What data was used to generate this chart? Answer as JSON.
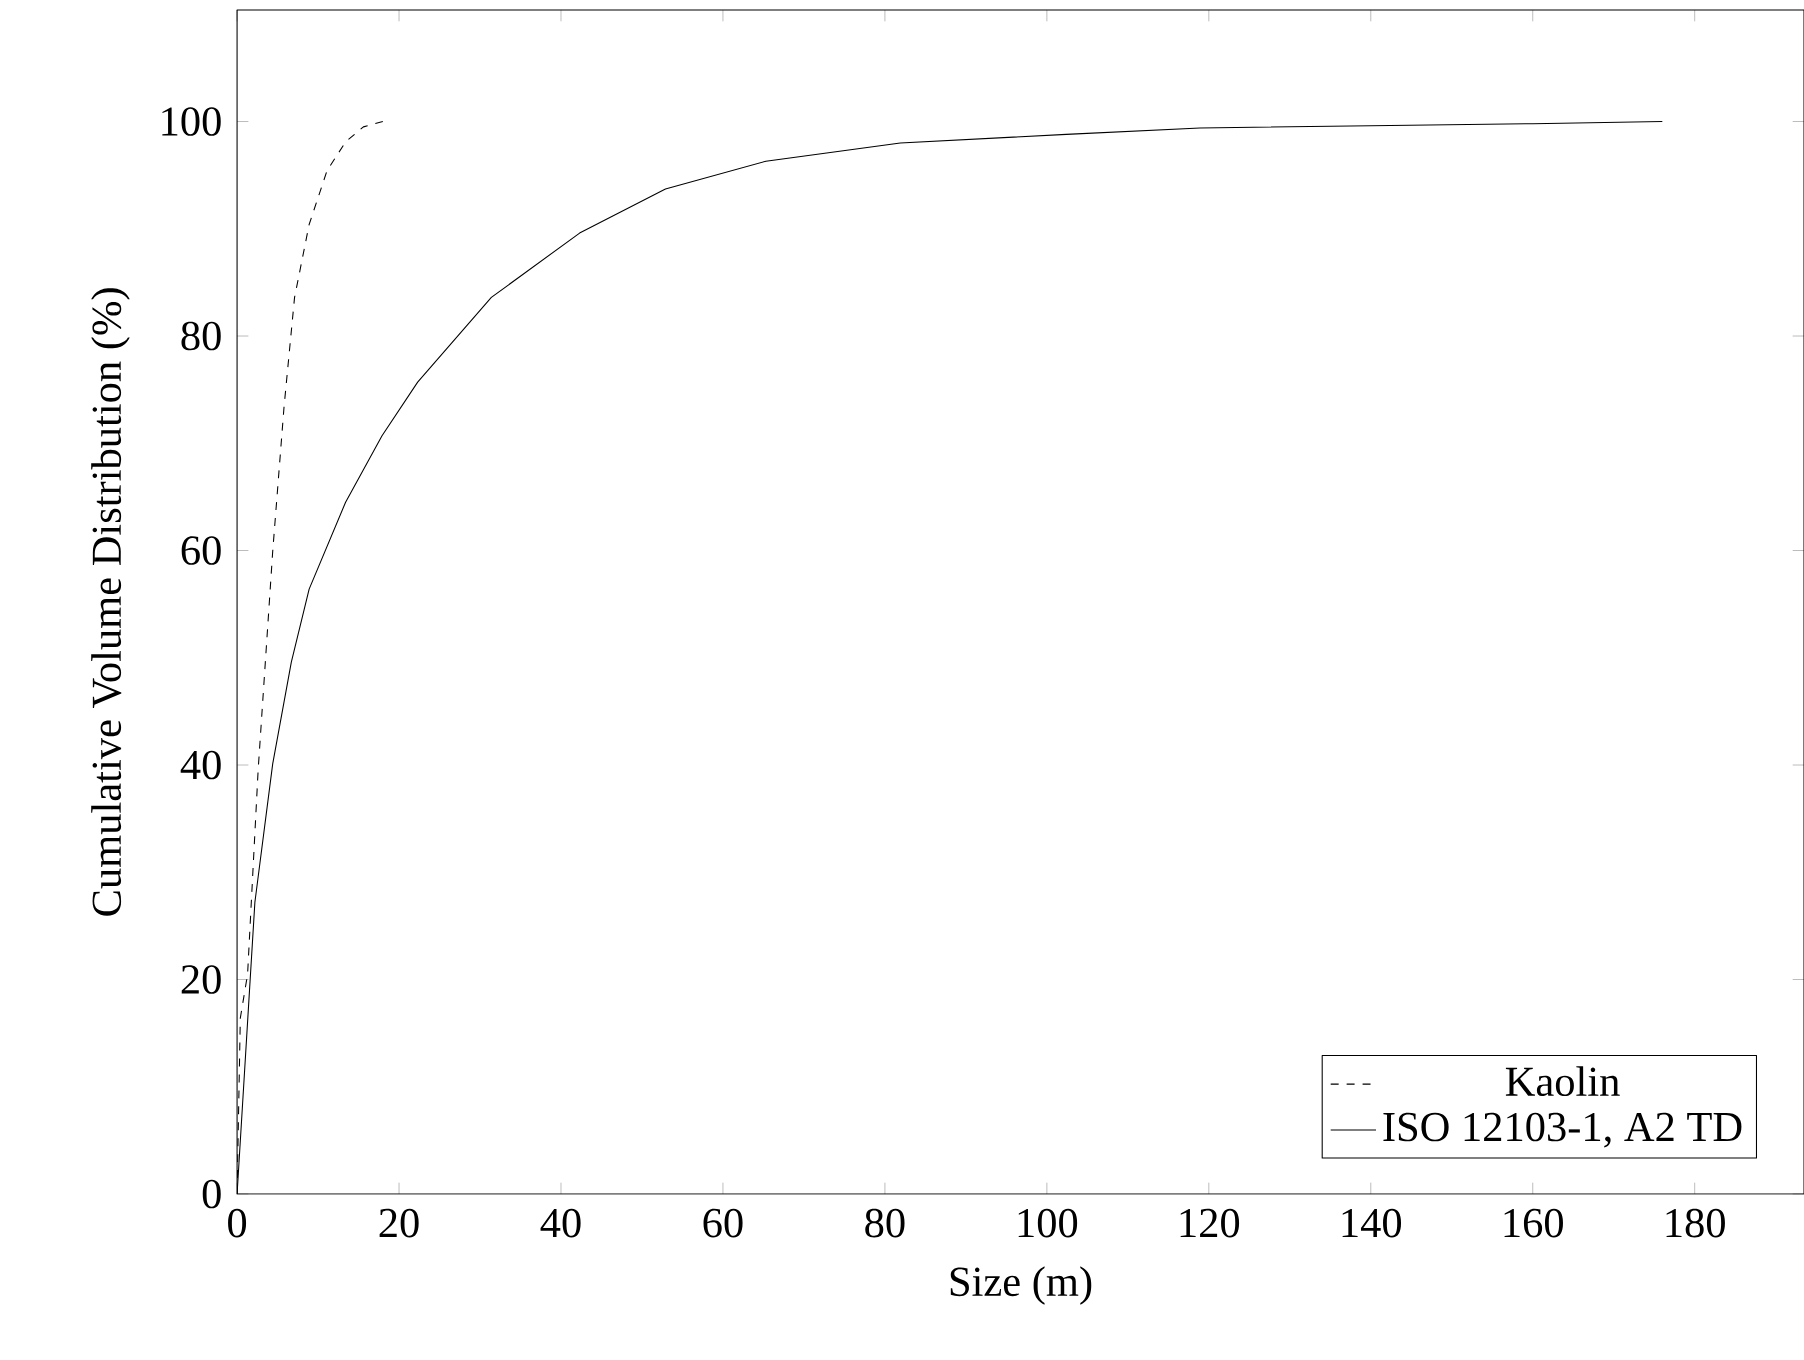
{
  "chart_data": {
    "type": "line",
    "xlabel": "Size (m)",
    "ylabel": "Cumulative Volume Distribution (%)",
    "xlim": [
      0,
      193.5
    ],
    "ylim": [
      0,
      110.4
    ],
    "xticks": [
      0,
      20,
      40,
      60,
      80,
      100,
      120,
      140,
      160,
      180
    ],
    "yticks": [
      0,
      20,
      40,
      60,
      80,
      100
    ],
    "legend": "bottom right",
    "series": [
      {
        "name": "Kaolin",
        "color": "#000000",
        "line_style": "dashed",
        "x": [
          0,
          0.4,
          1.3,
          2.6,
          4.4,
          5.8,
          7.1,
          8.9,
          11.1,
          13.4,
          15.6,
          18
        ],
        "values": [
          0,
          16.4,
          20.5,
          39.5,
          59.9,
          73.4,
          83.6,
          90.4,
          95.4,
          98.1,
          99.5,
          100
        ]
      },
      {
        "name": "ISO 12103-1, A2 TD",
        "color": "#000000",
        "line_style": "solid",
        "x": [
          0,
          2.2,
          4.4,
          6.7,
          8.9,
          13.4,
          17.9,
          22.3,
          31.4,
          42.3,
          52.9,
          65.3,
          81.9,
          102.4,
          118.9,
          140,
          160,
          176
        ],
        "values": [
          0,
          27.2,
          40.1,
          49.6,
          56.4,
          64.5,
          70.7,
          75.7,
          83.6,
          89.6,
          93.7,
          96.3,
          98.0,
          98.8,
          99.4,
          99.6,
          99.8,
          100
        ]
      }
    ]
  }
}
